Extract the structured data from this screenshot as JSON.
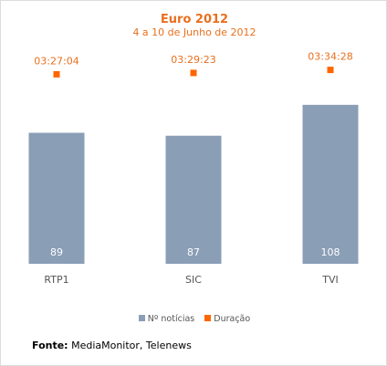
{
  "chart_data": {
    "type": "bar",
    "title": "Euro 2012",
    "subtitle": "4 a 10 de Junho de 2012",
    "categories": [
      "RTP1",
      "SIC",
      "TVI"
    ],
    "series": [
      {
        "name": "Nº notícias",
        "type": "bar",
        "values": [
          89,
          87,
          108
        ],
        "color": "#8a9eb6",
        "value_labels": [
          "89",
          "87",
          "108"
        ]
      },
      {
        "name": "Duração",
        "type": "marker",
        "values_seconds": [
          12424,
          12563,
          12868
        ],
        "labels": [
          "03:27:04",
          "03:29:23",
          "03:34:28"
        ],
        "color": "#ff6600"
      }
    ],
    "ylim_bars": [
      0,
      160
    ],
    "ylim_duration_seconds": [
      0,
      15000
    ],
    "grid": false,
    "legend_position": "bottom"
  },
  "source": {
    "label": "Fonte:",
    "text": "MediaMonitor, Telenews"
  },
  "colors": {
    "title": "#e8701e",
    "bar": "#8a9eb6",
    "marker": "#ff6600",
    "axis_text": "#555555"
  }
}
